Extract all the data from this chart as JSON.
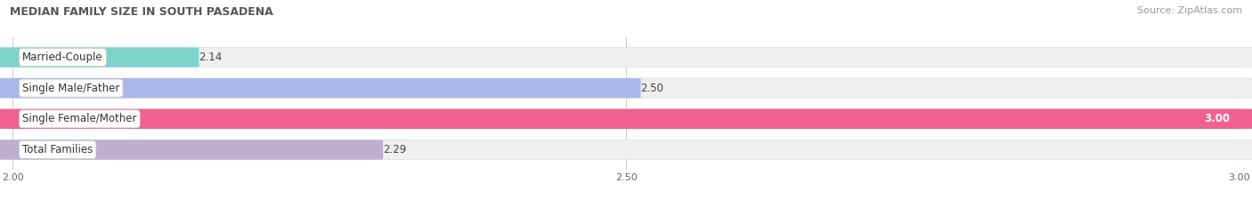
{
  "title": "MEDIAN FAMILY SIZE IN SOUTH PASADENA",
  "source": "Source: ZipAtlas.com",
  "categories": [
    "Married-Couple",
    "Single Male/Father",
    "Single Female/Mother",
    "Total Families"
  ],
  "values": [
    2.14,
    2.5,
    3.0,
    2.29
  ],
  "bar_colors": [
    "#7dd3cc",
    "#a8b8e8",
    "#f06090",
    "#c0aed0"
  ],
  "xlim": [
    2.0,
    3.0
  ],
  "xticks": [
    2.0,
    2.5,
    3.0
  ],
  "xtick_labels": [
    "2.00",
    "2.50",
    "3.00"
  ],
  "bar_height": 0.62,
  "background_color": "#ffffff",
  "bar_bg_color": "#efefef",
  "title_fontsize": 9,
  "source_fontsize": 8,
  "label_fontsize": 8.5,
  "value_fontsize": 8.5
}
